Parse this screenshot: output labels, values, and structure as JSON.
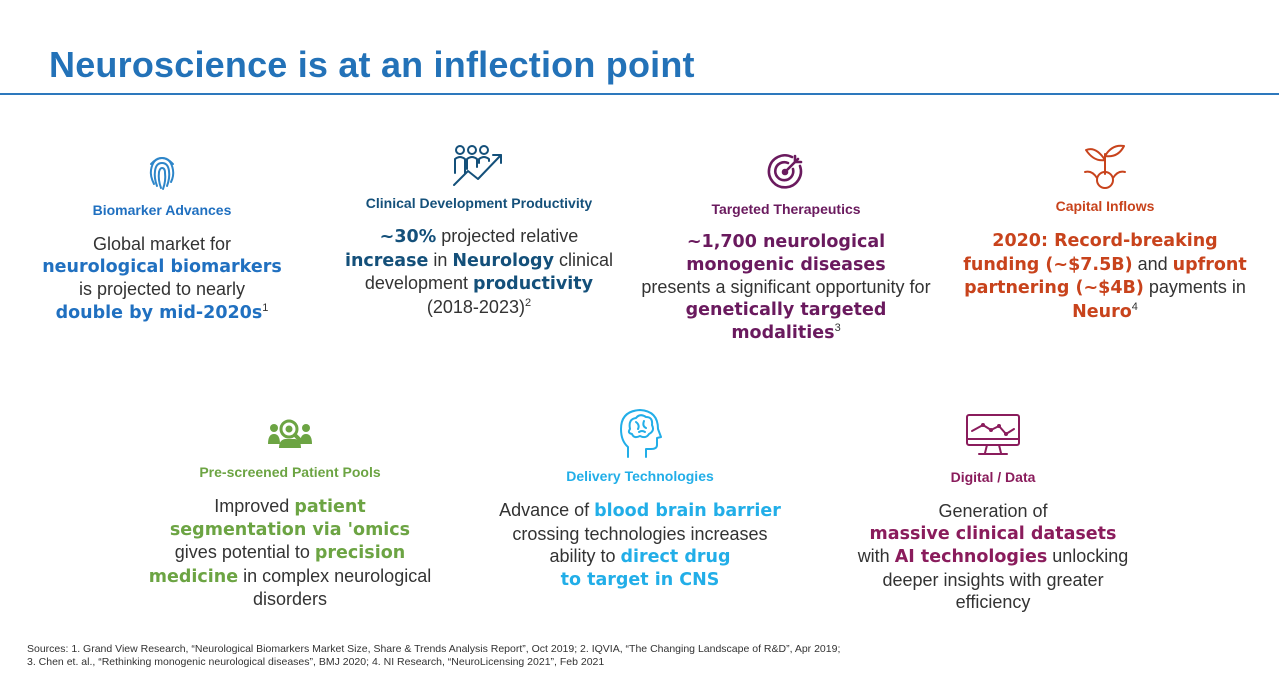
{
  "title": "Neuroscience is at an inflection point",
  "colors": {
    "title": "#2372b8",
    "blue": "#2070c0",
    "navy": "#14507a",
    "purple": "#6a1a5e",
    "orange": "#c8431c",
    "green": "#6ca443",
    "cyan": "#22aee8",
    "magenta": "#8a1c5c"
  },
  "cards": {
    "biomarker": {
      "icon": "fingerprint-icon",
      "title": "Biomarker Advances",
      "l1": "Global market for",
      "l2": "neurological biomarkers",
      "l3": "is projected to nearly",
      "l4": "double by mid-2020s",
      "sup": "1"
    },
    "clinical": {
      "icon": "people-growth-arrow-icon",
      "title": "Clinical Development Productivity",
      "l1a": "~30%",
      "l1b": " projected relative",
      "l2a": "increase",
      "l2b": " in ",
      "l2c": "Neurology",
      "l2d": " clinical",
      "l3a": "development ",
      "l3b": "productivity",
      "l4": "(2018-2023)",
      "sup": "2"
    },
    "targeted": {
      "icon": "target-icon",
      "title": "Targeted Therapeutics",
      "l1": "~1,700 neurological",
      "l2": "monogenic diseases",
      "l3": "presents a significant opportunity for",
      "l4": "genetically targeted",
      "l5": "modalities",
      "sup": "3"
    },
    "capital": {
      "icon": "sprouting-coin-icon",
      "title": "Capital Inflows",
      "l1": "2020: Record-breaking",
      "l2a": "funding (~$7.5B)",
      "l2b": " and ",
      "l2c": "upfront",
      "l3a": "partnering (~$4B)",
      "l3b": " payments in",
      "l4": "Neuro",
      "sup": "4"
    },
    "patient": {
      "icon": "people-magnifier-icon",
      "title": "Pre-screened Patient Pools",
      "l1a": "Improved ",
      "l1b": "patient",
      "l2": "segmentation via 'omics",
      "l3a": "gives potential to ",
      "l3b": "precision",
      "l4a": "medicine",
      "l4b": " in complex neurological",
      "l5": "disorders"
    },
    "delivery": {
      "icon": "head-brain-icon",
      "title": "Delivery Technologies",
      "l1a": "Advance of ",
      "l1b": "blood brain barrier",
      "l2": "crossing technologies increases",
      "l3a": "ability to ",
      "l3b": "direct drug",
      "l4": "to target in CNS"
    },
    "digital": {
      "icon": "monitor-chart-icon",
      "title": "Digital / Data",
      "l1": "Generation of",
      "l2": "massive clinical datasets",
      "l3a": "with ",
      "l3b": "AI technologies",
      "l3c": " unlocking",
      "l4": "deeper insights with greater",
      "l5": "efficiency"
    }
  },
  "sources": {
    "line1": "Sources: 1. Grand View Research, “Neurological Biomarkers Market Size, Share & Trends Analysis Report”, Oct 2019; 2. IQVIA, “The Changing Landscape of R&D”, Apr 2019;",
    "line2": "3. Chen et. al., “Rethinking monogenic neurological diseases”, BMJ 2020; 4. NI Research, “NeuroLicensing 2021”, Feb 2021"
  }
}
